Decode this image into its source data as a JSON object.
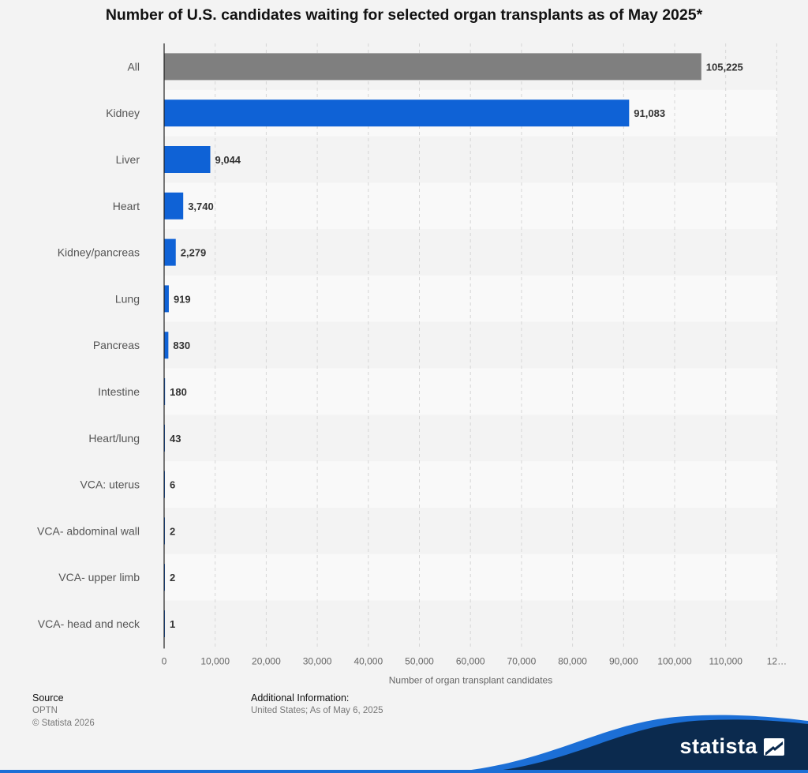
{
  "chart_data": {
    "type": "bar",
    "orientation": "horizontal",
    "title": "Number of U.S. candidates waiting for selected organ transplants as of May 2025*",
    "xlabel": "Number of organ transplant candidates",
    "ylabel": "",
    "xlim": [
      0,
      120000
    ],
    "ticks": [
      "0",
      "10,000",
      "20,000",
      "30,000",
      "40,000",
      "50,000",
      "60,000",
      "70,000",
      "80,000",
      "90,000",
      "100,000",
      "110,000",
      "12…"
    ],
    "categories": [
      "All",
      "Kidney",
      "Liver",
      "Heart",
      "Kidney/pancreas",
      "Lung",
      "Pancreas",
      "Intestine",
      "Heart/lung",
      "VCA: uterus",
      "VCA- abdominal wall",
      "VCA- upper limb",
      "VCA- head and neck"
    ],
    "values": [
      105225,
      91083,
      9044,
      3740,
      2279,
      919,
      830,
      180,
      43,
      6,
      2,
      2,
      1
    ],
    "value_labels": [
      "105,225",
      "91,083",
      "9,044",
      "3,740",
      "2,279",
      "919",
      "830",
      "180",
      "43",
      "6",
      "2",
      "2",
      "1"
    ],
    "bar_colors": [
      "#7f7f7f",
      "#0f62d6",
      "#0f62d6",
      "#0f62d6",
      "#0f62d6",
      "#0f62d6",
      "#0f62d6",
      "#0f62d6",
      "#0f62d6",
      "#0f62d6",
      "#0f62d6",
      "#0f62d6",
      "#0f62d6"
    ],
    "grid": true
  },
  "footer": {
    "source_heading": "Source",
    "source_lines": [
      "OPTN",
      "© Statista 2026"
    ],
    "info_heading": "Additional Information:",
    "info_text": "United States; As of May 6, 2025"
  },
  "brand": {
    "name": "statista",
    "color": "#0b2a4e",
    "accent": "#1c6fd6",
    "icon": "statista-logo-icon"
  }
}
